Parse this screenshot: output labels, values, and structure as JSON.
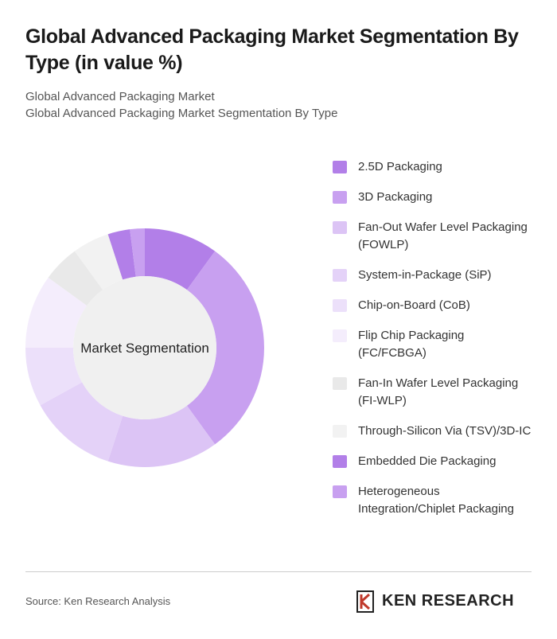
{
  "chart_data": {
    "type": "donut",
    "title": "Global Advanced Packaging Market Segmentation By Type (in value %)",
    "subtitle": [
      "Global Advanced Packaging Market",
      "Global Advanced Packaging Market Segmentation By Type"
    ],
    "center_label": "Market Segmentation",
    "categories": [
      "2.5D Packaging",
      "3D Packaging",
      "Fan-Out Wafer Level Packaging (FOWLP)",
      "System-in-Package (SiP)",
      "Chip-on-Board (CoB)",
      "Flip Chip Packaging (FC/FCBGA)",
      "Fan-In Wafer Level Packaging (FI-WLP)",
      "Through-Silicon Via (TSV)/3D-IC",
      "Embedded Die Packaging",
      "Heterogeneous Integration/Chiplet Packaging"
    ],
    "values": [
      10,
      30,
      15,
      12,
      8,
      10,
      5,
      5,
      3,
      2
    ],
    "colors": [
      "#b27fe8",
      "#c8a0f0",
      "#dcc4f5",
      "#e4d2f8",
      "#ece0fa",
      "#f4edfc",
      "#e9e9e9",
      "#f2f2f2",
      "#b27fe8",
      "#c8a0f0"
    ],
    "source": "Source: Ken Research Analysis",
    "brand": "KEN RESEARCH"
  }
}
